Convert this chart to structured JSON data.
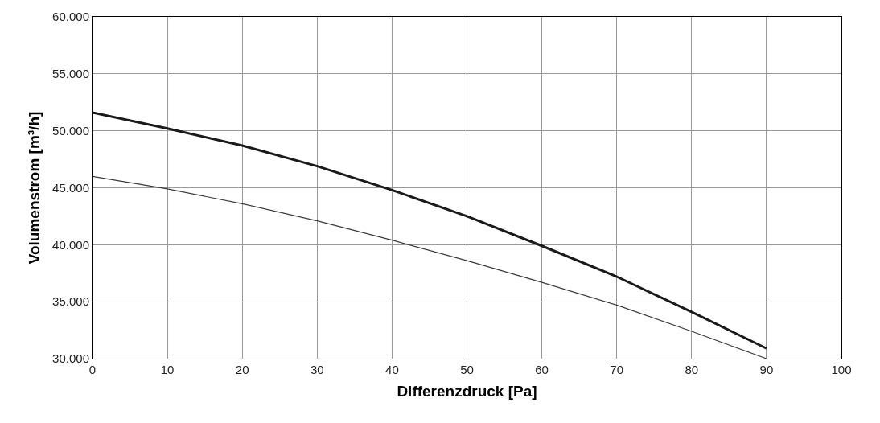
{
  "chart_data": {
    "type": "line",
    "xlabel": "Differenzdruck [Pa]",
    "ylabel": "Volumenstrom [m³/h]",
    "x": [
      0,
      10,
      20,
      30,
      40,
      50,
      60,
      70,
      80,
      90
    ],
    "series": [
      {
        "color": "#1a1a1a",
        "values": [
          51600,
          50200,
          48700,
          46900,
          44800,
          42500,
          39900,
          37200,
          34100,
          30900
        ]
      },
      {
        "color": "#3a3a3a",
        "values": [
          46000,
          44900,
          43600,
          42100,
          40400,
          38600,
          36700,
          34700,
          32400,
          30000
        ]
      }
    ],
    "xlim": [
      0,
      100
    ],
    "xticks": [
      0,
      10,
      20,
      30,
      40,
      50,
      60,
      70,
      80,
      90,
      100
    ],
    "ylim": [
      30000,
      60000
    ],
    "yticks": [
      {
        "value": 30000,
        "label": "30.000"
      },
      {
        "value": 35000,
        "label": "35.000"
      },
      {
        "value": 40000,
        "label": "40.000"
      },
      {
        "value": 45000,
        "label": "45.000"
      },
      {
        "value": 50000,
        "label": "50.000"
      },
      {
        "value": 55000,
        "label": "55.000"
      },
      {
        "value": 60000,
        "label": "60.000"
      }
    ],
    "grid": true,
    "marker": "none",
    "line_style": "solid"
  }
}
